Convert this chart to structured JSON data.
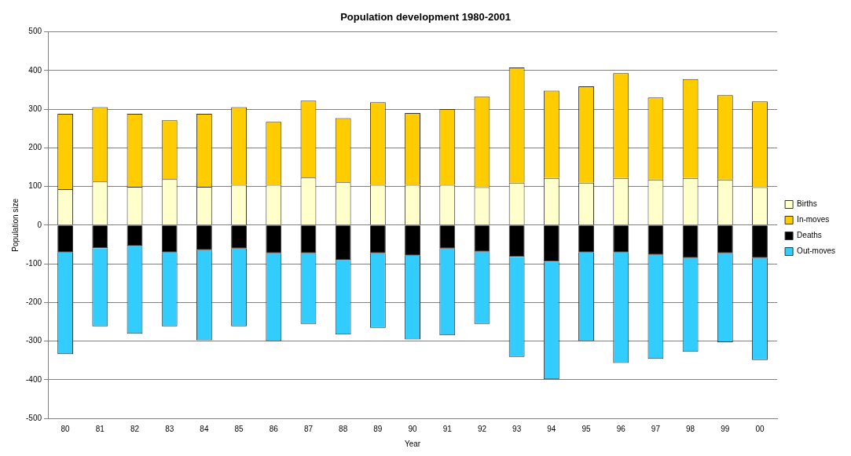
{
  "chart_data": {
    "type": "bar",
    "stacked": true,
    "title": "Population development 1980-2001",
    "xlabel": "Year",
    "ylabel": "Population size",
    "categories": [
      "80",
      "81",
      "82",
      "83",
      "84",
      "85",
      "86",
      "87",
      "88",
      "89",
      "90",
      "91",
      "92",
      "93",
      "94",
      "95",
      "96",
      "97",
      "98",
      "99",
      "00"
    ],
    "series": [
      {
        "name": "Births",
        "color": "#ffffcc",
        "values": [
          93,
          113,
          99,
          119,
          99,
          104,
          104,
          123,
          111,
          104,
          104,
          104,
          98,
          110,
          122,
          110,
          122,
          118,
          122,
          118,
          98
        ]
      },
      {
        "name": "In-moves",
        "color": "#ffcc00",
        "values": [
          195,
          192,
          189,
          152,
          189,
          201,
          163,
          199,
          166,
          214,
          186,
          196,
          234,
          298,
          226,
          249,
          271,
          212,
          256,
          218,
          222
        ]
      },
      {
        "name": "Deaths",
        "color": "#000000",
        "values": [
          -71,
          -60,
          -53,
          -71,
          -65,
          -61,
          -73,
          -73,
          -90,
          -73,
          -79,
          -61,
          -69,
          -82,
          -95,
          -71,
          -71,
          -77,
          -85,
          -73,
          -85
        ]
      },
      {
        "name": "Out-moves",
        "color": "#33ccff",
        "values": [
          -263,
          -202,
          -228,
          -191,
          -233,
          -201,
          -227,
          -183,
          -193,
          -193,
          -217,
          -224,
          -187,
          -259,
          -304,
          -229,
          -286,
          -269,
          -243,
          -230,
          -264
        ]
      }
    ],
    "ylim": [
      -500,
      500
    ],
    "yticks": [
      -500,
      -400,
      -300,
      -200,
      -100,
      0,
      100,
      200,
      300,
      400,
      500
    ],
    "grid": "y",
    "legend": "right"
  }
}
